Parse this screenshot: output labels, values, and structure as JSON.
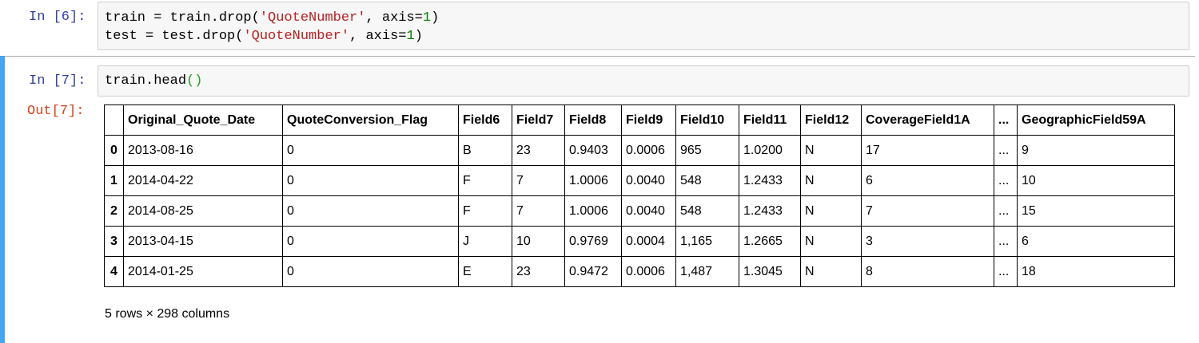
{
  "cell6": {
    "prompt": "In [6]:",
    "line1": {
      "a": "train = train.drop(",
      "str": "'QuoteNumber'",
      "b": ", axis=",
      "num": "1",
      "c": ")"
    },
    "line2": {
      "a": "test = test.drop(",
      "str": "'QuoteNumber'",
      "b": ", axis=",
      "num": "1",
      "c": ")"
    }
  },
  "cell7": {
    "prompt": "In [7]:",
    "code": {
      "a": "train.head",
      "paren": "()"
    },
    "out_prompt": "Out[7]:",
    "table": {
      "columns": [
        "Original_Quote_Date",
        "QuoteConversion_Flag",
        "Field6",
        "Field7",
        "Field8",
        "Field9",
        "Field10",
        "Field11",
        "Field12",
        "CoverageField1A",
        "...",
        "GeographicField59A"
      ],
      "rows": [
        {
          "index": "0",
          "cells": [
            "2013-08-16",
            "0",
            "B",
            "23",
            "0.9403",
            "0.0006",
            "965",
            "1.0200",
            "N",
            "17",
            "...",
            "9"
          ]
        },
        {
          "index": "1",
          "cells": [
            "2014-04-22",
            "0",
            "F",
            "7",
            "1.0006",
            "0.0040",
            "548",
            "1.2433",
            "N",
            "6",
            "...",
            "10"
          ]
        },
        {
          "index": "2",
          "cells": [
            "2014-08-25",
            "0",
            "F",
            "7",
            "1.0006",
            "0.0040",
            "548",
            "1.2433",
            "N",
            "7",
            "...",
            "15"
          ]
        },
        {
          "index": "3",
          "cells": [
            "2013-04-15",
            "0",
            "J",
            "10",
            "0.9769",
            "0.0004",
            "1,165",
            "1.2665",
            "N",
            "3",
            "...",
            "6"
          ]
        },
        {
          "index": "4",
          "cells": [
            "2014-01-25",
            "0",
            "E",
            "23",
            "0.9472",
            "0.0006",
            "1,487",
            "1.3045",
            "N",
            "8",
            "...",
            "18"
          ]
        }
      ]
    },
    "shape_caption": "5 rows × 298 columns"
  }
}
